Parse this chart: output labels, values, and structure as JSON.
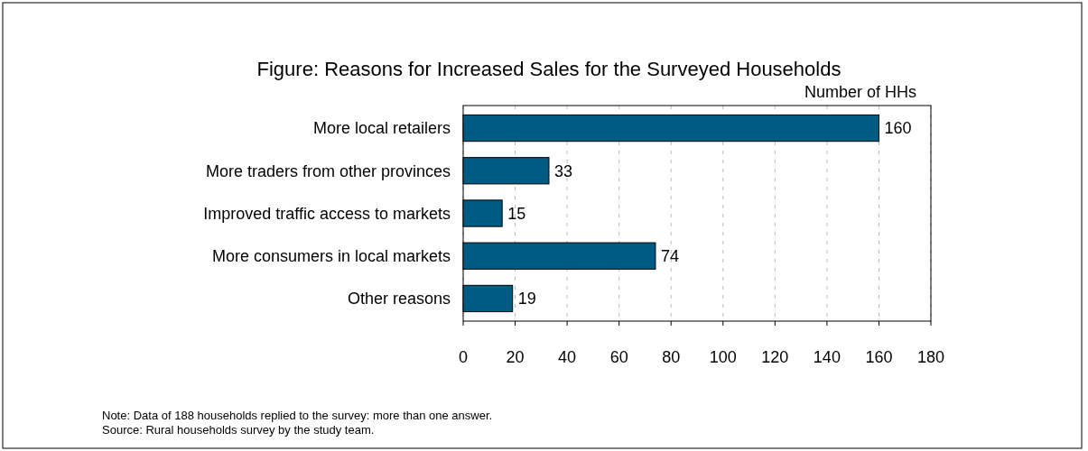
{
  "chart_data": {
    "type": "bar",
    "orientation": "horizontal",
    "title": "Figure: Reasons for Increased Sales for the Surveyed Households",
    "xlabel": "Number of HHs",
    "categories": [
      "More local retailers",
      "More traders from other provinces",
      "Improved traffic access to markets",
      "More consumers in local markets",
      "Other reasons"
    ],
    "values": [
      160,
      33,
      15,
      74,
      19
    ],
    "color": "#005b82",
    "data_labels": true,
    "xlim": [
      0,
      180
    ],
    "xticks": [
      0,
      20,
      40,
      60,
      80,
      100,
      120,
      140,
      160,
      180
    ],
    "grid": "x",
    "annotations": [
      "Note: Data of 188 households replied to the survey: more than one answer.",
      "Source: Rural households survey by the study team."
    ]
  }
}
